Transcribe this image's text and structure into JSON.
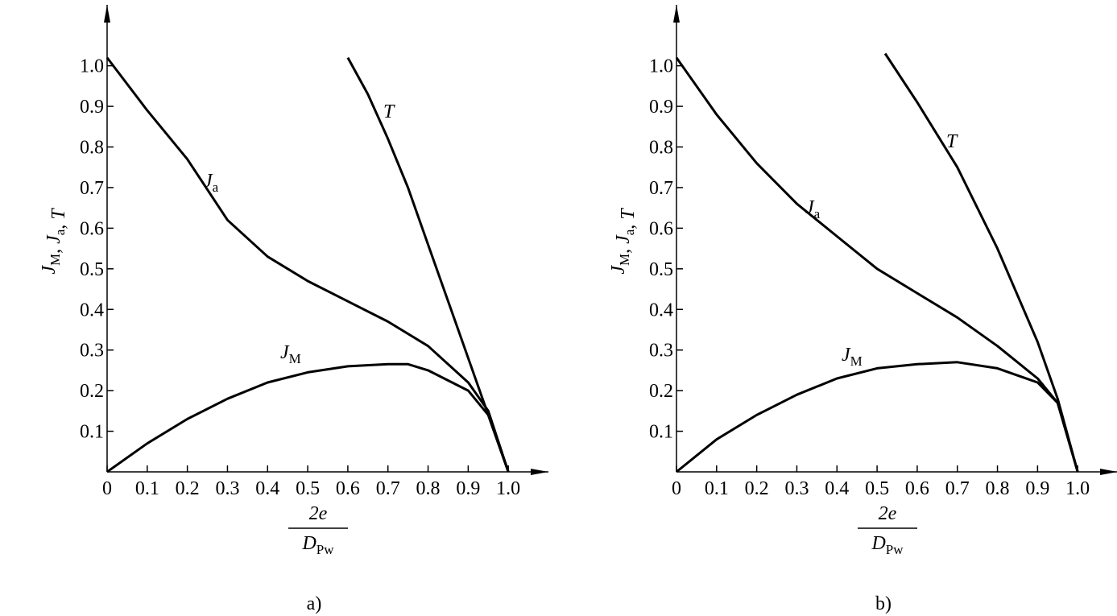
{
  "chart_data": [
    {
      "type": "line",
      "caption": "a)",
      "ylabel": "JM, Ja, T",
      "xlabel_num": "2e",
      "xlabel_den": "DPw",
      "color": "#000000",
      "xlim": [
        0,
        1.1
      ],
      "ylim": [
        0,
        1.15
      ],
      "xticks": [
        0,
        0.1,
        0.2,
        0.3,
        0.4,
        0.5,
        0.6,
        0.7,
        0.8,
        0.9,
        {
          "value": 1,
          "label": "1.0"
        }
      ],
      "yticks": [
        0.1,
        0.2,
        0.3,
        0.4,
        0.5,
        0.6,
        0.7,
        0.8,
        0.9,
        {
          "value": 1,
          "label": "1.0"
        }
      ],
      "series": [
        {
          "name": "Ja",
          "x": [
            0,
            0.1,
            0.2,
            0.3,
            0.4,
            0.5,
            0.6,
            0.7,
            0.8,
            0.9,
            0.95,
            1
          ],
          "values": [
            1.02,
            0.89,
            0.77,
            0.62,
            0.53,
            0.47,
            0.42,
            0.37,
            0.31,
            0.22,
            0.15,
            0
          ]
        },
        {
          "name": "JM",
          "x": [
            0,
            0.1,
            0.2,
            0.3,
            0.4,
            0.5,
            0.6,
            0.7,
            0.75,
            0.8,
            0.9,
            0.95,
            1
          ],
          "values": [
            0,
            0.07,
            0.13,
            0.18,
            0.22,
            0.245,
            0.26,
            0.265,
            0.265,
            0.25,
            0.2,
            0.14,
            0
          ]
        },
        {
          "name": "T",
          "x": [
            0.6,
            0.65,
            0.7,
            0.75,
            0.8,
            0.85,
            0.9,
            0.95,
            1
          ],
          "values": [
            1.02,
            0.93,
            0.82,
            0.7,
            0.56,
            0.42,
            0.28,
            0.14,
            0
          ]
        }
      ]
    },
    {
      "type": "line",
      "caption": "b)",
      "ylabel": "JM, Ja, T",
      "xlabel_num": "2e",
      "xlabel_den": "DPw",
      "color": "#000000",
      "xlim": [
        0,
        1.1
      ],
      "ylim": [
        0,
        1.15
      ],
      "xticks": [
        0,
        0.1,
        0.2,
        0.3,
        0.4,
        0.5,
        0.6,
        0.7,
        0.8,
        0.9,
        {
          "value": 1,
          "label": "1.0"
        }
      ],
      "yticks": [
        0.1,
        0.2,
        0.3,
        0.4,
        0.5,
        0.6,
        0.7,
        0.8,
        0.9,
        {
          "value": 1,
          "label": "1.0"
        }
      ],
      "series": [
        {
          "name": "Ja",
          "x": [
            0,
            0.1,
            0.2,
            0.3,
            0.4,
            0.5,
            0.6,
            0.7,
            0.8,
            0.9,
            0.95,
            1
          ],
          "values": [
            1.02,
            0.88,
            0.76,
            0.66,
            0.58,
            0.5,
            0.44,
            0.38,
            0.31,
            0.23,
            0.17,
            0
          ]
        },
        {
          "name": "JM",
          "x": [
            0,
            0.1,
            0.2,
            0.3,
            0.4,
            0.5,
            0.6,
            0.7,
            0.8,
            0.9,
            0.95,
            1
          ],
          "values": [
            0,
            0.08,
            0.14,
            0.19,
            0.23,
            0.255,
            0.265,
            0.27,
            0.255,
            0.22,
            0.17,
            0
          ]
        },
        {
          "name": "T",
          "x": [
            0.52,
            0.6,
            0.7,
            0.8,
            0.9,
            0.95,
            1
          ],
          "values": [
            1.03,
            0.91,
            0.75,
            0.55,
            0.32,
            0.18,
            0
          ]
        }
      ]
    }
  ]
}
